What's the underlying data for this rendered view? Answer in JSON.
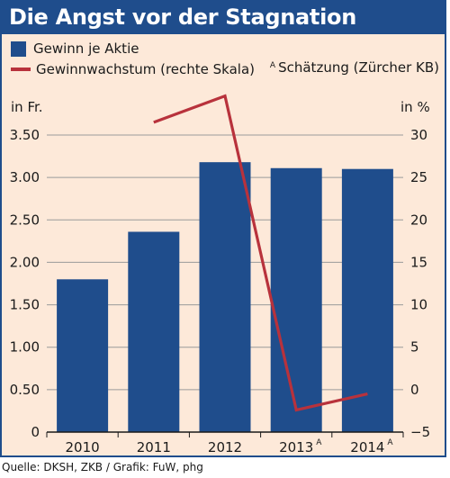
{
  "header": {
    "title": "Die Angst vor der Stagnation"
  },
  "legend": {
    "bar_label": "Gewinn je Aktie",
    "line_label": "Gewinnwachstum (rechte Skala)",
    "estimate_marker": "A",
    "estimate_note": "Schätzung (Zürcher KB)"
  },
  "axes": {
    "left_unit": "in Fr.",
    "right_unit": "in %"
  },
  "source": "Quelle: DKSH, ZKB / Grafik: FuW, phg",
  "colors": {
    "bar": "#1f4d8c",
    "line": "#b8323c",
    "background": "#fde9d9",
    "header": "#1f4d8c"
  },
  "chart_data": {
    "type": "bar",
    "title": "Die Angst vor der Stagnation",
    "categories": [
      "2010",
      "2011",
      "2012",
      "2013",
      "2014"
    ],
    "estimated": [
      false,
      false,
      false,
      true,
      true
    ],
    "series": [
      {
        "name": "Gewinn je Aktie",
        "type": "bar",
        "axis": "left",
        "values": [
          1.8,
          2.36,
          3.18,
          3.11,
          3.1
        ]
      },
      {
        "name": "Gewinnwachstum (rechte Skala)",
        "type": "line",
        "axis": "right",
        "values": [
          null,
          31.5,
          34.6,
          -2.4,
          -0.5
        ]
      }
    ],
    "y_left": {
      "label": "in Fr.",
      "ylim": [
        0,
        3.5
      ],
      "ticks": [
        "0",
        "0.50",
        "1.00",
        "1.50",
        "2.00",
        "2.50",
        "3.00",
        "3.50"
      ]
    },
    "y_right": {
      "label": "in %",
      "ylim": [
        -5,
        30
      ],
      "ticks": [
        "−5",
        "0",
        "5",
        "10",
        "15",
        "20",
        "25",
        "30"
      ]
    },
    "grid": true,
    "legend_position": "top-left"
  }
}
